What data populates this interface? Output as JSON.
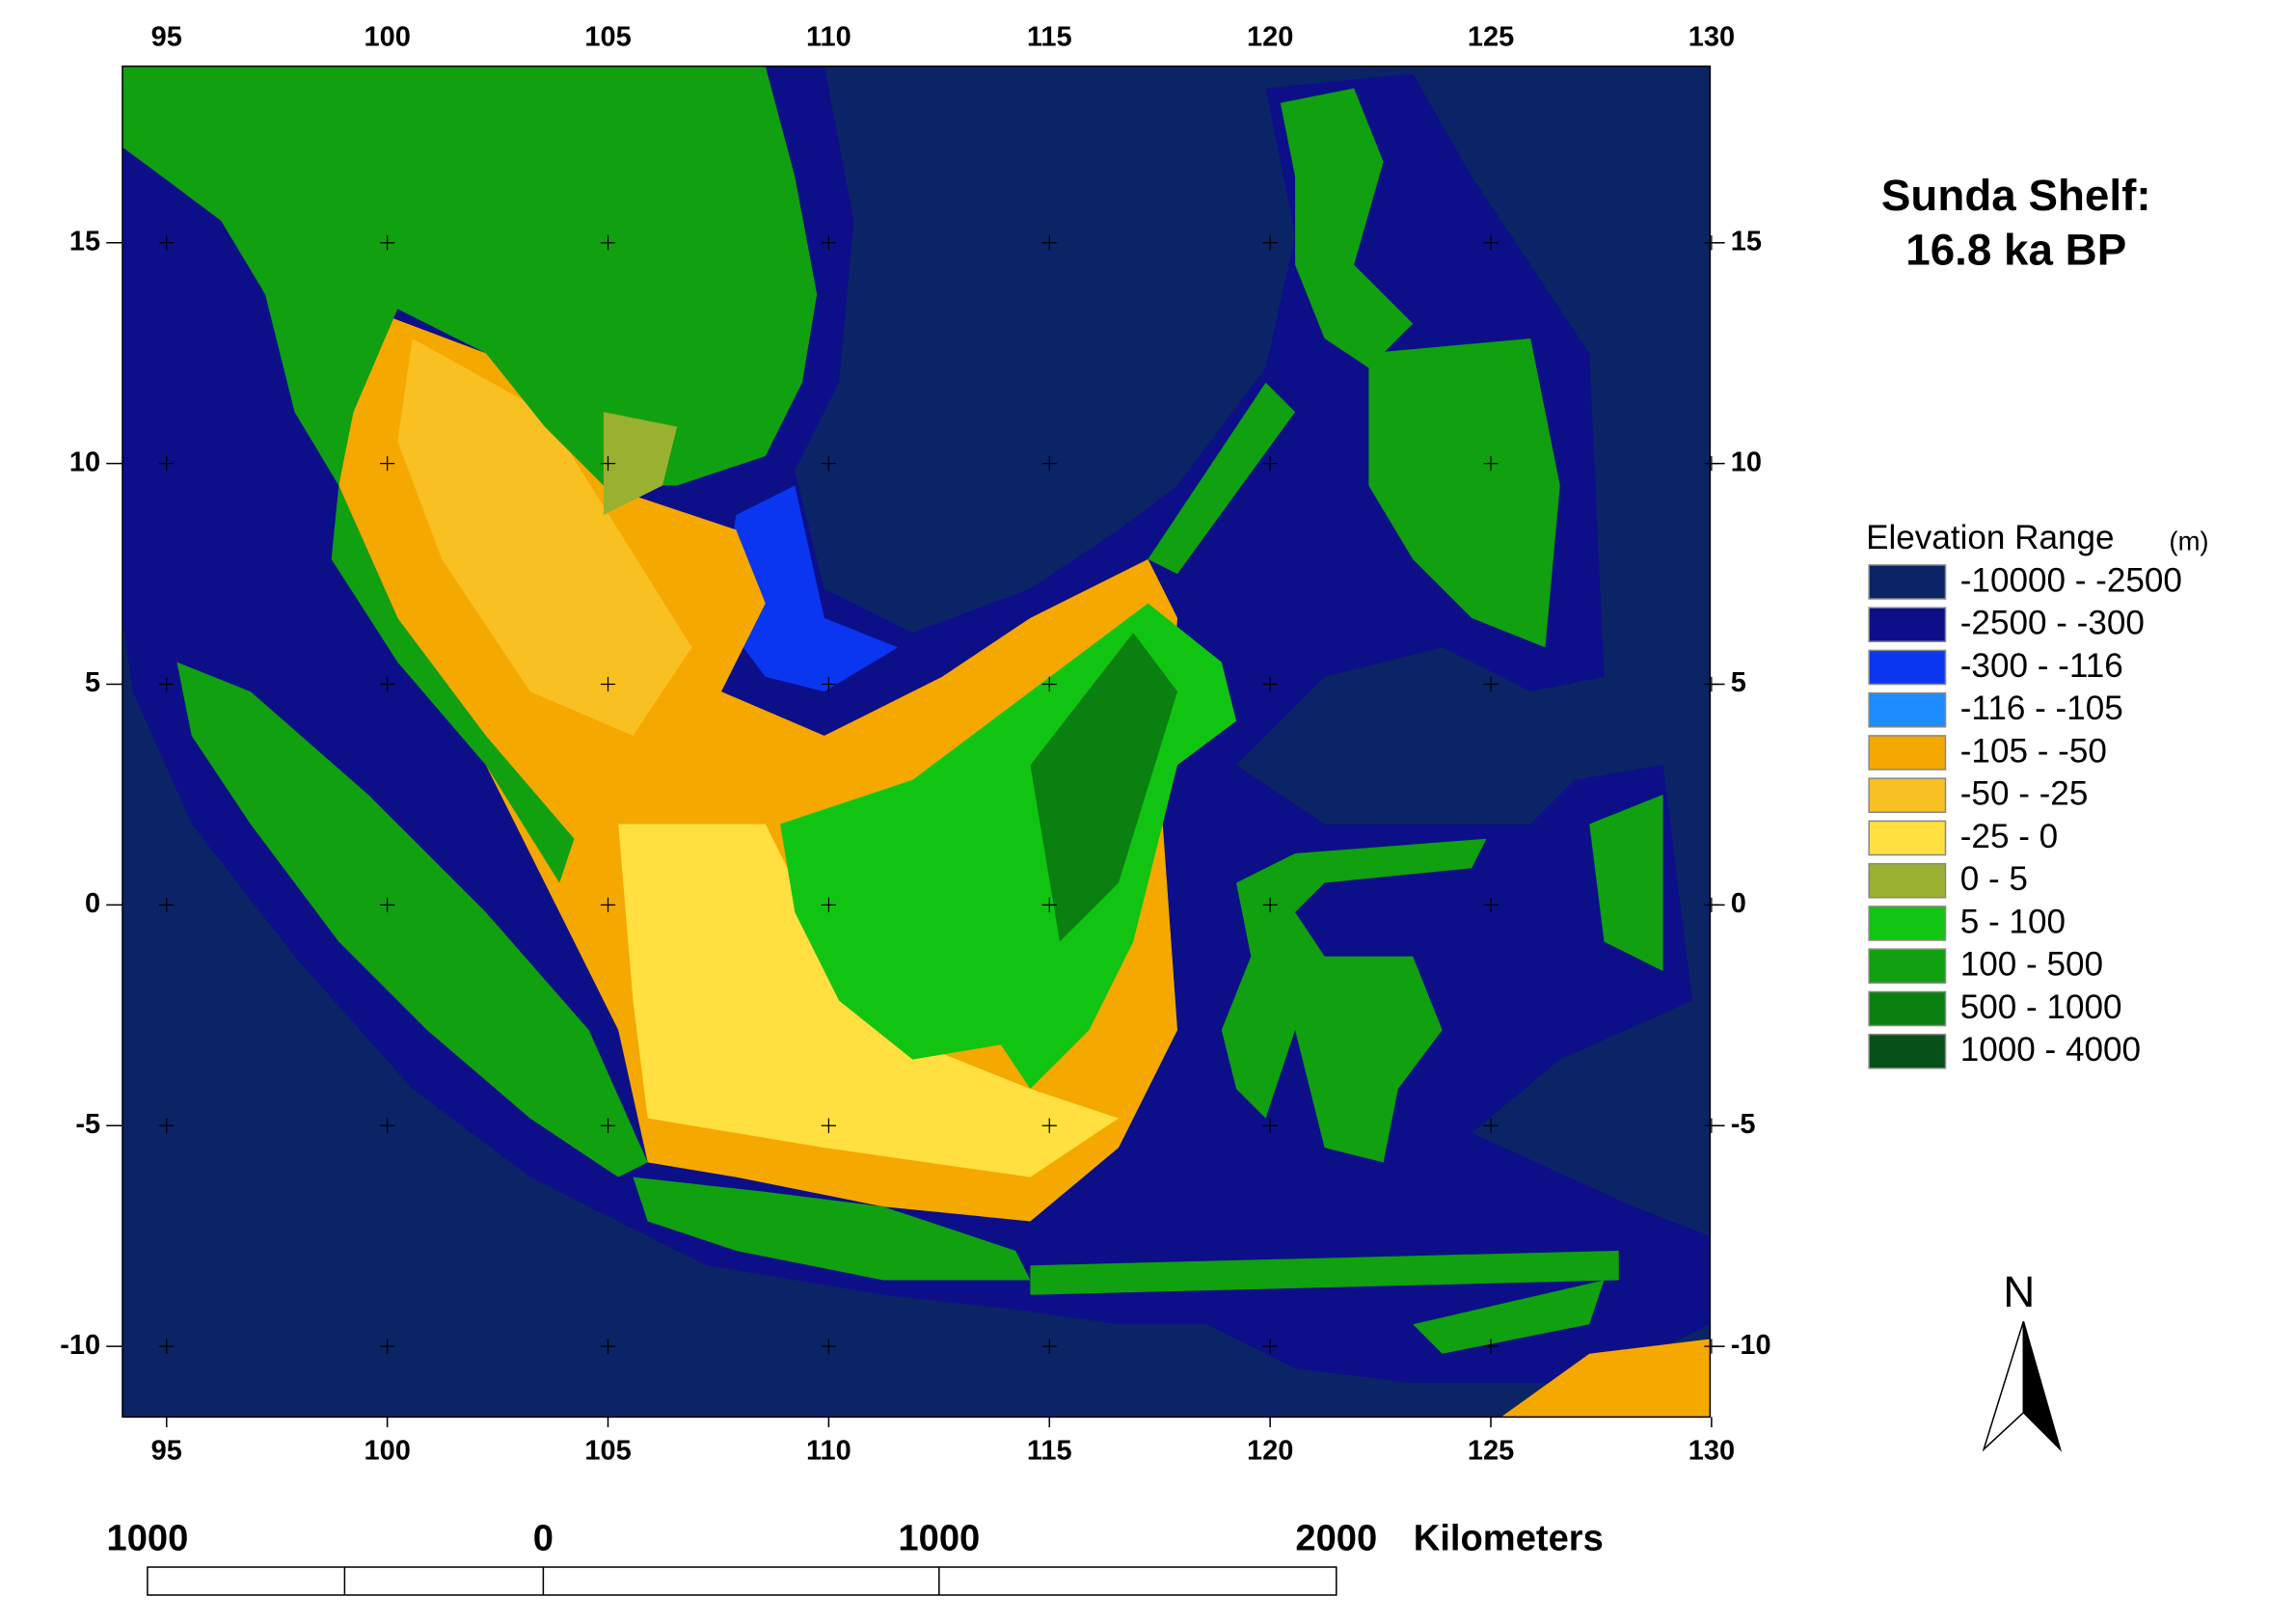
{
  "map_title": [
    "Sunda Shelf:",
    "16.8 ka BP"
  ],
  "lon_ticks": [
    "95",
    "100",
    "105",
    "110",
    "115",
    "120",
    "125",
    "130"
  ],
  "lat_ticks": [
    "15",
    "10",
    "5",
    "0",
    "-5",
    "-10"
  ],
  "legend": {
    "title": "Elevation Range",
    "unit": "(m)",
    "items": [
      {
        "label": "-10000 - -2500",
        "color": "#0b2466"
      },
      {
        "label": "-2500 - -300",
        "color": "#0c0f88"
      },
      {
        "label": "-300 - -116",
        "color": "#0a36f0"
      },
      {
        "label": "-116 - -105",
        "color": "#1e8cff"
      },
      {
        "label": "-105 - -50",
        "color": "#f5a800"
      },
      {
        "label": "-50 - -25",
        "color": "#f8c020"
      },
      {
        "label": "-25 - 0",
        "color": "#ffe040"
      },
      {
        "label": "0 - 5",
        "color": "#9ab030"
      },
      {
        "label": "5 - 100",
        "color": "#12c412"
      },
      {
        "label": "100 - 500",
        "color": "#10a010"
      },
      {
        "label": "500 - 1000",
        "color": "#0a8010"
      },
      {
        "label": "1000 - 4000",
        "color": "#06501a"
      }
    ]
  },
  "north": "N",
  "scale_bar": {
    "labels": [
      "1000",
      "0",
      "1000",
      "2000"
    ],
    "unit": "Kilometers"
  }
}
